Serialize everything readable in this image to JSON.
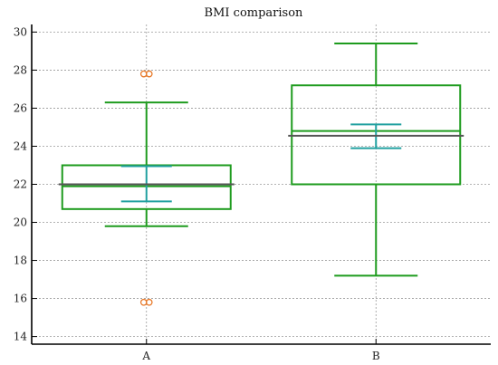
{
  "chart_data": {
    "type": "box",
    "title": "BMI comparison",
    "xlabel": "",
    "ylabel": "",
    "ylim": [
      13.6,
      30.4
    ],
    "yticks": [
      14,
      16,
      18,
      20,
      22,
      24,
      26,
      28,
      30
    ],
    "grid": true,
    "categories": [
      "A",
      "B"
    ],
    "boxes": [
      {
        "category": "A",
        "whisker_low": 19.8,
        "q1": 20.7,
        "median": 21.9,
        "q3": 23.0,
        "whisker_high": 26.3,
        "mean": 22.0,
        "mean_ci": [
          21.1,
          22.95
        ],
        "outliers": [
          27.8,
          15.8
        ]
      },
      {
        "category": "B",
        "whisker_low": 17.2,
        "q1": 22.0,
        "median": 24.8,
        "q3": 27.2,
        "whisker_high": 29.4,
        "mean": 24.55,
        "mean_ci": [
          23.9,
          25.15
        ],
        "outliers": []
      }
    ],
    "colors": {
      "box": "#1e9b1e",
      "mean": "#555555",
      "ci": "#20a0a0",
      "outlier": "#e87a2a"
    }
  }
}
